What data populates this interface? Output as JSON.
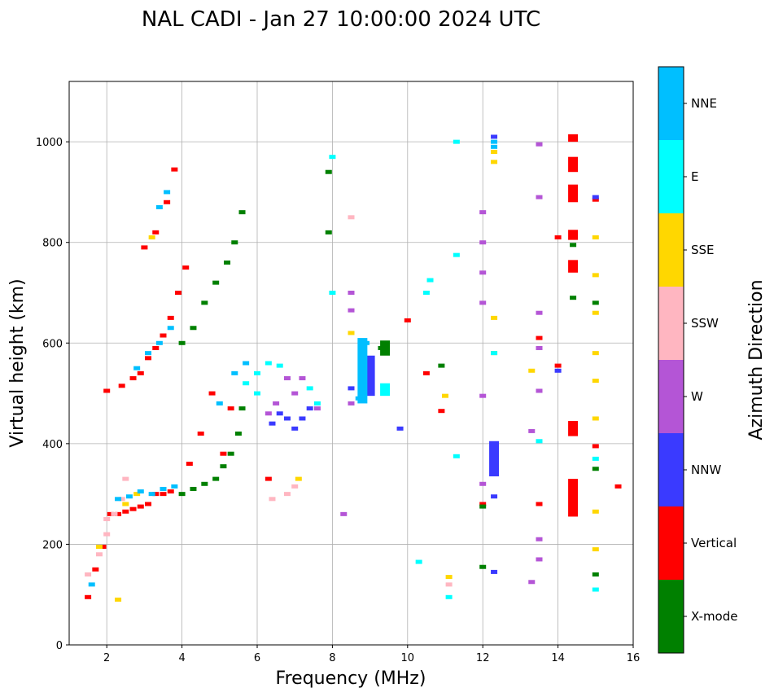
{
  "chart_data": {
    "type": "scatter",
    "title": "NAL CADI - Jan 27 10:00:00 2024 UTC",
    "xlabel": "Frequency (MHz)",
    "ylabel": "Virtual height (km)",
    "xlim": [
      1,
      16
    ],
    "ylim": [
      0,
      1120
    ],
    "xticks": [
      2,
      4,
      6,
      8,
      10,
      12,
      14,
      16
    ],
    "yticks": [
      0,
      200,
      400,
      600,
      800,
      1000
    ],
    "grid": true,
    "colorbar": {
      "label": "Azimuth Direction",
      "categories": [
        {
          "name": "X-mode",
          "color": "#008000"
        },
        {
          "name": "Vertical",
          "color": "#ff0000"
        },
        {
          "name": "NNW",
          "color": "#3a3aff"
        },
        {
          "name": "W",
          "color": "#b455d6"
        },
        {
          "name": "SSW",
          "color": "#ffb6c1"
        },
        {
          "name": "SSE",
          "color": "#ffd700"
        },
        {
          "name": "E",
          "color": "#00ffff"
        },
        {
          "name": "NNE",
          "color": "#00bfff"
        }
      ]
    },
    "series": [
      {
        "name": "Vertical",
        "points": [
          [
            1.5,
            95
          ],
          [
            1.7,
            150
          ],
          [
            1.9,
            195
          ],
          [
            2.0,
            505
          ],
          [
            2.1,
            260
          ],
          [
            2.3,
            260
          ],
          [
            2.5,
            265
          ],
          [
            2.7,
            270
          ],
          [
            2.9,
            275
          ],
          [
            3.1,
            280
          ],
          [
            3.3,
            300
          ],
          [
            3.5,
            300
          ],
          [
            3.7,
            305
          ],
          [
            2.4,
            515
          ],
          [
            2.7,
            530
          ],
          [
            2.9,
            540
          ],
          [
            3.1,
            570
          ],
          [
            3.3,
            590
          ],
          [
            3.5,
            615
          ],
          [
            3.7,
            650
          ],
          [
            3.9,
            700
          ],
          [
            4.1,
            750
          ],
          [
            3.0,
            790
          ],
          [
            3.3,
            820
          ],
          [
            3.6,
            880
          ],
          [
            3.8,
            945
          ],
          [
            4.2,
            360
          ],
          [
            4.5,
            420
          ],
          [
            4.8,
            500
          ],
          [
            5.1,
            380
          ],
          [
            5.3,
            470
          ],
          [
            6.3,
            330
          ],
          [
            10.0,
            645
          ],
          [
            10.5,
            540
          ],
          [
            10.9,
            465
          ],
          [
            12.0,
            280
          ],
          [
            13.5,
            280
          ],
          [
            13.5,
            610
          ],
          [
            14.0,
            555
          ],
          [
            14.0,
            810
          ],
          [
            15.0,
            395
          ],
          [
            15.0,
            885
          ],
          [
            15.6,
            315
          ]
        ]
      },
      {
        "name": "X-mode",
        "points": [
          [
            4.0,
            300
          ],
          [
            4.3,
            310
          ],
          [
            4.6,
            320
          ],
          [
            4.9,
            330
          ],
          [
            5.1,
            355
          ],
          [
            5.3,
            380
          ],
          [
            5.5,
            420
          ],
          [
            5.6,
            470
          ],
          [
            4.0,
            600
          ],
          [
            4.3,
            630
          ],
          [
            4.6,
            680
          ],
          [
            4.9,
            720
          ],
          [
            5.2,
            760
          ],
          [
            5.4,
            800
          ],
          [
            5.6,
            860
          ],
          [
            7.9,
            820
          ],
          [
            7.9,
            940
          ],
          [
            9.3,
            590
          ],
          [
            10.9,
            555
          ],
          [
            12.0,
            155
          ],
          [
            12.0,
            275
          ],
          [
            14.4,
            690
          ],
          [
            14.4,
            795
          ],
          [
            15.0,
            140
          ],
          [
            15.0,
            350
          ],
          [
            15.0,
            680
          ]
        ]
      },
      {
        "name": "NNW",
        "points": [
          [
            6.4,
            440
          ],
          [
            6.6,
            460
          ],
          [
            6.8,
            450
          ],
          [
            7.0,
            430
          ],
          [
            7.2,
            450
          ],
          [
            7.4,
            470
          ],
          [
            8.5,
            510
          ],
          [
            8.8,
            500
          ],
          [
            9.0,
            520
          ],
          [
            9.0,
            560
          ],
          [
            12.3,
            145
          ],
          [
            12.3,
            295
          ],
          [
            12.3,
            340
          ],
          [
            12.3,
            370
          ],
          [
            12.3,
            400
          ],
          [
            12.3,
            1010
          ],
          [
            14.0,
            545
          ],
          [
            14.4,
            310
          ],
          [
            15.0,
            890
          ],
          [
            9.8,
            430
          ]
        ]
      },
      {
        "name": "W",
        "points": [
          [
            6.3,
            460
          ],
          [
            6.5,
            480
          ],
          [
            6.8,
            530
          ],
          [
            7.0,
            500
          ],
          [
            7.2,
            530
          ],
          [
            7.6,
            470
          ],
          [
            8.3,
            260
          ],
          [
            8.5,
            480
          ],
          [
            8.5,
            700
          ],
          [
            8.5,
            665
          ],
          [
            12.0,
            320
          ],
          [
            12.0,
            495
          ],
          [
            12.0,
            680
          ],
          [
            12.0,
            740
          ],
          [
            12.0,
            800
          ],
          [
            12.0,
            860
          ],
          [
            13.3,
            125
          ],
          [
            13.3,
            425
          ],
          [
            13.5,
            170
          ],
          [
            13.5,
            210
          ],
          [
            13.5,
            505
          ],
          [
            13.5,
            590
          ],
          [
            13.5,
            660
          ],
          [
            13.5,
            890
          ],
          [
            13.5,
            995
          ],
          [
            14.4,
            305
          ]
        ]
      },
      {
        "name": "SSW",
        "points": [
          [
            1.5,
            140
          ],
          [
            1.8,
            180
          ],
          [
            2.0,
            220
          ],
          [
            2.0,
            250
          ],
          [
            2.2,
            260
          ],
          [
            2.4,
            290
          ],
          [
            2.5,
            330
          ],
          [
            6.4,
            290
          ],
          [
            6.8,
            300
          ],
          [
            7.0,
            315
          ],
          [
            11.1,
            120
          ],
          [
            8.5,
            850
          ]
        ]
      },
      {
        "name": "SSE",
        "points": [
          [
            1.8,
            195
          ],
          [
            2.3,
            90
          ],
          [
            2.5,
            280
          ],
          [
            2.8,
            300
          ],
          [
            3.2,
            810
          ],
          [
            7.1,
            330
          ],
          [
            8.5,
            620
          ],
          [
            11.0,
            495
          ],
          [
            11.1,
            135
          ],
          [
            12.3,
            580
          ],
          [
            12.3,
            650
          ],
          [
            12.3,
            960
          ],
          [
            12.3,
            980
          ],
          [
            13.3,
            545
          ],
          [
            15.0,
            190
          ],
          [
            15.0,
            265
          ],
          [
            15.0,
            450
          ],
          [
            15.0,
            525
          ],
          [
            15.0,
            580
          ],
          [
            15.0,
            660
          ],
          [
            15.0,
            735
          ],
          [
            15.0,
            810
          ]
        ]
      },
      {
        "name": "E",
        "points": [
          [
            5.7,
            520
          ],
          [
            6.0,
            540
          ],
          [
            6.0,
            500
          ],
          [
            6.3,
            560
          ],
          [
            6.6,
            555
          ],
          [
            7.4,
            510
          ],
          [
            7.6,
            480
          ],
          [
            8.0,
            700
          ],
          [
            8.0,
            970
          ],
          [
            9.4,
            510
          ],
          [
            10.3,
            165
          ],
          [
            10.5,
            700
          ],
          [
            10.6,
            725
          ],
          [
            11.1,
            95
          ],
          [
            11.3,
            375
          ],
          [
            11.3,
            775
          ],
          [
            11.3,
            1000
          ],
          [
            12.3,
            580
          ],
          [
            13.5,
            405
          ],
          [
            15.0,
            110
          ],
          [
            15.0,
            370
          ]
        ]
      },
      {
        "name": "NNE",
        "points": [
          [
            1.6,
            120
          ],
          [
            2.3,
            290
          ],
          [
            2.6,
            295
          ],
          [
            2.9,
            305
          ],
          [
            3.2,
            300
          ],
          [
            3.5,
            310
          ],
          [
            3.8,
            315
          ],
          [
            2.8,
            550
          ],
          [
            3.1,
            580
          ],
          [
            3.4,
            600
          ],
          [
            3.7,
            630
          ],
          [
            3.4,
            870
          ],
          [
            3.6,
            900
          ],
          [
            5.0,
            480
          ],
          [
            5.4,
            540
          ],
          [
            5.7,
            560
          ],
          [
            8.7,
            490
          ],
          [
            8.9,
            600
          ],
          [
            12.3,
            990
          ],
          [
            12.3,
            1000
          ]
        ]
      }
    ],
    "bars": [
      {
        "color": "#ff0000",
        "x": 14.4,
        "y0": 255,
        "y1": 330
      },
      {
        "color": "#ff0000",
        "x": 14.4,
        "y0": 415,
        "y1": 445
      },
      {
        "color": "#ff0000",
        "x": 14.4,
        "y0": 740,
        "y1": 765
      },
      {
        "color": "#ff0000",
        "x": 14.4,
        "y0": 880,
        "y1": 915
      },
      {
        "color": "#ff0000",
        "x": 14.4,
        "y0": 940,
        "y1": 970
      },
      {
        "color": "#ff0000",
        "x": 14.4,
        "y0": 1000,
        "y1": 1015
      },
      {
        "color": "#ff0000",
        "x": 14.4,
        "y0": 805,
        "y1": 825
      },
      {
        "color": "#3a3aff",
        "x": 12.3,
        "y0": 335,
        "y1": 405
      },
      {
        "color": "#00ffff",
        "x": 9.4,
        "y0": 495,
        "y1": 520
      },
      {
        "color": "#3a3aff",
        "x": 9.0,
        "y0": 495,
        "y1": 575
      },
      {
        "color": "#00bfff",
        "x": 8.8,
        "y0": 480,
        "y1": 610
      },
      {
        "color": "#008000",
        "x": 9.4,
        "y0": 575,
        "y1": 605
      }
    ]
  }
}
